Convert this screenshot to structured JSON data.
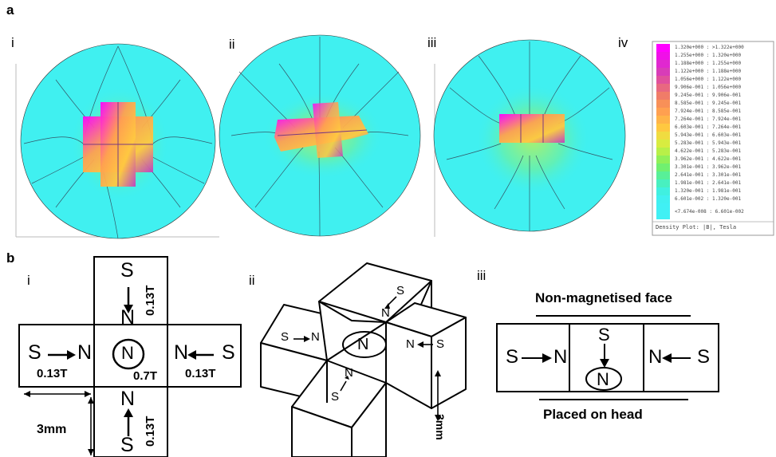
{
  "panel_a": {
    "letter": "a",
    "sublabels": [
      "i",
      "ii",
      "iii",
      "iv"
    ]
  },
  "panel_b": {
    "letter": "b",
    "sublabels": [
      "i",
      "ii",
      "iii"
    ],
    "i": {
      "top": {
        "pole_out": "S",
        "pole_in": "N",
        "field": "0.13T"
      },
      "left": {
        "pole_out": "S",
        "pole_in": "N",
        "field": "0.13T"
      },
      "right": {
        "pole_in": "N",
        "pole_out": "S",
        "field": "0.13T"
      },
      "bottom": {
        "pole_in": "N",
        "pole_out": "S",
        "field": "0.13T"
      },
      "center": {
        "pole": "N",
        "field": "0.7T"
      },
      "dimension": "3mm"
    },
    "ii": {
      "left": {
        "from": "S",
        "to": "N"
      },
      "right": {
        "to": "N",
        "from": "S"
      },
      "back": {
        "from": "S",
        "to": "N"
      },
      "front": {
        "from": "S",
        "to": "N"
      },
      "center": "N",
      "dimension": "3mm"
    },
    "iii": {
      "top_label": "Non-magnetised face",
      "bottom_label": "Placed on head",
      "left": {
        "from": "S",
        "to": "N"
      },
      "middle": {
        "from": "S",
        "to": "N"
      },
      "right": {
        "to": "N",
        "from": "S"
      }
    }
  },
  "legend": {
    "rows": [
      "1.320e+000 : >1.322e+000",
      "1.255e+000 : 1.320e+000",
      "1.188e+000 : 1.255e+000",
      "1.122e+000 : 1.188e+000",
      "1.056e+000 : 1.122e+000",
      "9.906e-001 : 1.056e+000",
      "9.245e-001 : 9.906e-001",
      "8.585e-001 : 9.245e-001",
      "7.924e-001 : 8.585e-001",
      "7.264e-001 : 7.924e-001",
      "6.603e-001 : 7.264e-001",
      "5.943e-001 : 6.603e-001",
      "5.283e-001 : 5.943e-001",
      "4.622e-001 : 5.283e-001",
      "3.962e-001 : 4.622e-001",
      "3.301e-001 : 3.962e-001",
      "2.641e-001 : 3.301e-001",
      "1.981e-001 : 2.641e-001",
      "1.320e-001 : 1.981e-001",
      "6.601e-002 : 1.320e-001",
      "<7.674e-008 : 6.601e-002"
    ],
    "colors": [
      "#ff00ff",
      "#f010e8",
      "#e028d0",
      "#d83cb8",
      "#e0509c",
      "#e86880",
      "#f07c68",
      "#f89058",
      "#ffa050",
      "#ffb448",
      "#ffc840",
      "#f0dc40",
      "#d8ec40",
      "#b8f048",
      "#90f058",
      "#70f070",
      "#58f098",
      "#48f0c0",
      "#40f0e0",
      "#40f0f0",
      "#40f0f4"
    ],
    "caption": "Density Plot: |B|, Tesla"
  }
}
